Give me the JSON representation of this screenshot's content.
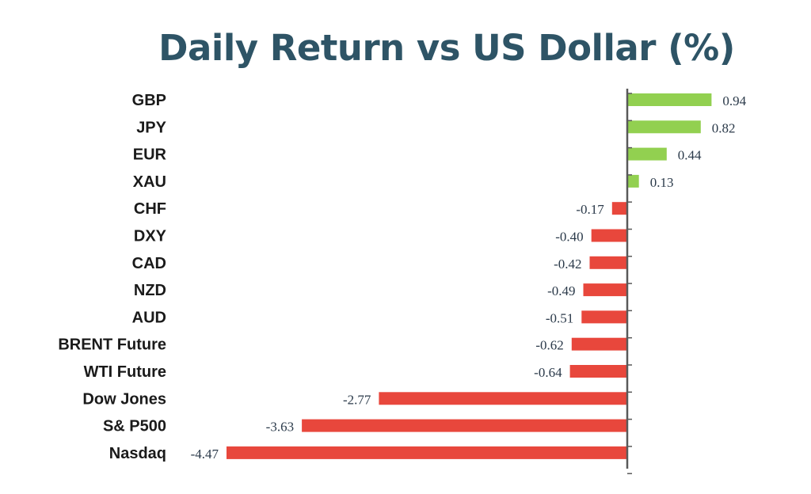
{
  "chart_data": {
    "type": "bar",
    "orientation": "horizontal",
    "title": "Daily Return vs US Dollar (%)",
    "categories": [
      "GBP",
      "JPY",
      "EUR",
      "XAU",
      "CHF",
      "DXY",
      "CAD",
      "NZD",
      "AUD",
      "BRENT Future",
      "WTI Future",
      "Dow Jones",
      "S& P500",
      "Nasdaq"
    ],
    "values": [
      0.94,
      0.82,
      0.44,
      0.13,
      -0.17,
      -0.4,
      -0.42,
      -0.49,
      -0.51,
      -0.62,
      -0.64,
      -2.77,
      -3.63,
      -4.47
    ],
    "value_labels": [
      "0.94",
      "0.82",
      "0.44",
      "0.13",
      "-0.17",
      "-0.40",
      "-0.42",
      "-0.49",
      "-0.51",
      "-0.62",
      "-0.64",
      "-2.77",
      "-3.63",
      "-4.47"
    ],
    "colors": {
      "positive": "#92d050",
      "negative": "#e8473c",
      "axis": "#595959"
    },
    "grid": false,
    "legend": "none"
  }
}
